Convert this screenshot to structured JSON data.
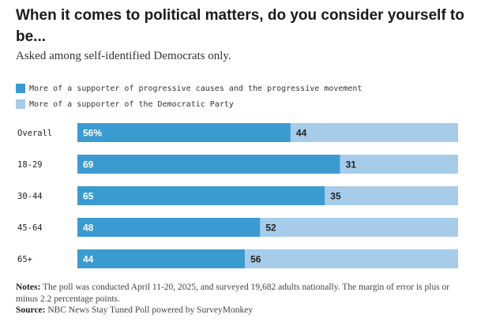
{
  "title": "When it comes to political matters, do you consider yourself to be...",
  "subtitle": "Asked among self-identified Democrats only.",
  "colors": {
    "progressive": "#3a9bd1",
    "democratic_party": "#a6cce9"
  },
  "notes": {
    "notes_label": "Notes:",
    "notes_text": " The poll was conducted April 11-20, 2025, and surveyed 19,682 adults nationally. The margin of error is plus or minus 2.2 percentage points.",
    "source_label": "Source:",
    "source_text": " NBC News Stay Tuned Poll powered by SurveyMonkey"
  },
  "chart_data": {
    "type": "bar",
    "orientation": "horizontal",
    "stacked": true,
    "title": "When it comes to political matters, do you consider yourself to be...",
    "subtitle": "Asked among self-identified Democrats only.",
    "categories": [
      "Overall",
      "18-29",
      "30-44",
      "45-64",
      "65+"
    ],
    "series": [
      {
        "name": "More of a supporter of progressive causes and the progressive movement",
        "values": [
          56,
          69,
          65,
          48,
          44
        ],
        "labels": [
          "56%",
          "69",
          "65",
          "48",
          "44"
        ]
      },
      {
        "name": "More of a supporter of the Democratic Party",
        "values": [
          44,
          31,
          35,
          52,
          56
        ],
        "labels": [
          "44",
          "31",
          "35",
          "52",
          "56"
        ]
      }
    ],
    "xlim": [
      0,
      100
    ],
    "legend_position": "top-left",
    "grid": false
  }
}
